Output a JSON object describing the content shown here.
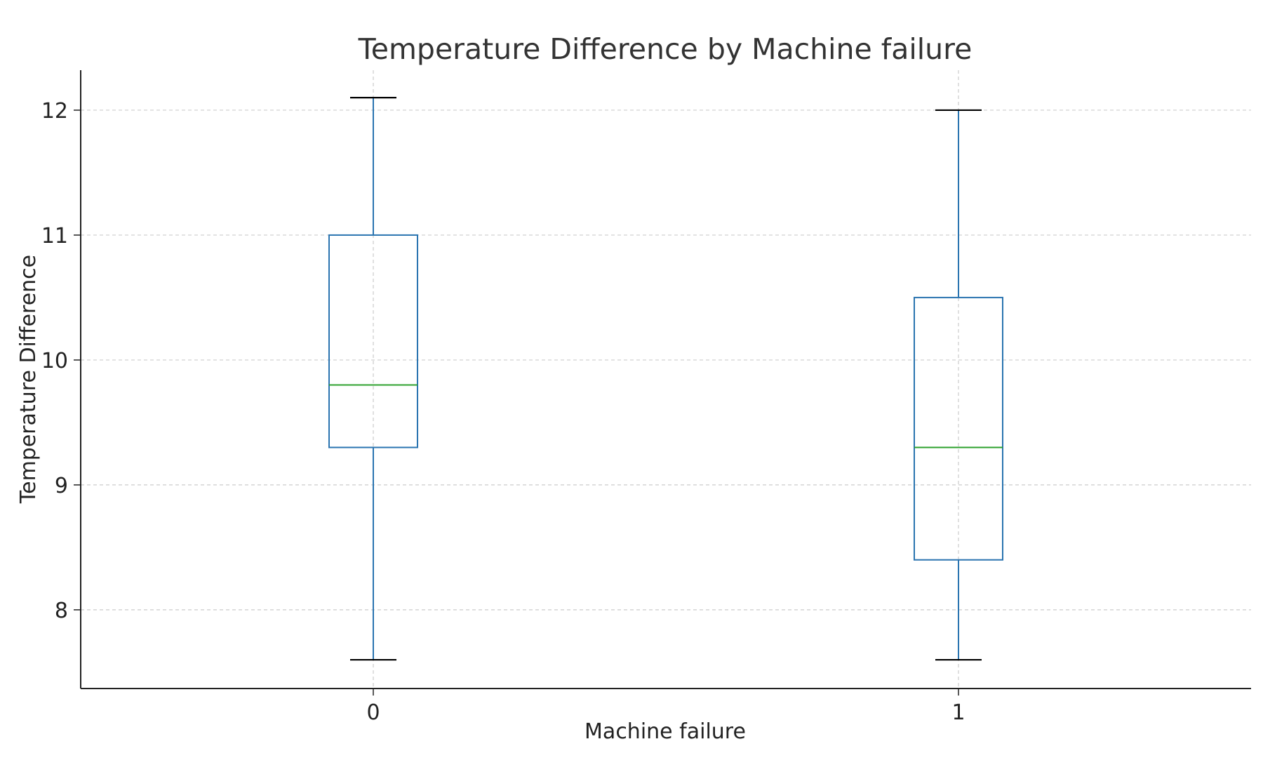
{
  "chart_data": {
    "type": "box",
    "title": "Temperature Difference by Machine failure",
    "xlabel": "Machine failure",
    "ylabel": "Temperature Difference",
    "categories": [
      "0",
      "1"
    ],
    "boxes": [
      {
        "category": "0",
        "whisker_low": 7.6,
        "q1": 9.3,
        "median": 9.8,
        "q3": 11.0,
        "whisker_high": 12.1
      },
      {
        "category": "1",
        "whisker_low": 7.6,
        "q1": 8.4,
        "median": 9.3,
        "q3": 10.5,
        "whisker_high": 12.0
      }
    ],
    "yticks": [
      8,
      9,
      10,
      11,
      12
    ],
    "ylim": [
      7.37,
      12.32
    ],
    "grid": true,
    "colors": {
      "box": "#2a74b0",
      "median": "#2ca02c",
      "whisker_cap": "#000000",
      "grid": "#cccccc",
      "axis": "#222222"
    }
  }
}
